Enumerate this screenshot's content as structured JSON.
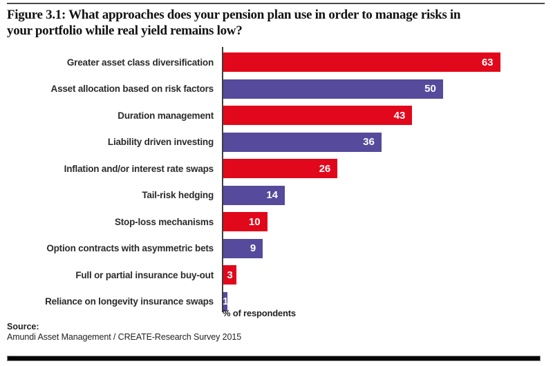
{
  "figure": {
    "title_line1": "Figure 3.1: What approaches does your pension plan use in order to manage risks in",
    "title_line2": "your portfolio while real yield remains low?"
  },
  "source": {
    "label": "Source:",
    "text": "Amundi Asset Management / CREATE-Research Survey 2015"
  },
  "colors": {
    "bar_red": "#e2081b",
    "bar_purple": "#554a9c",
    "axis": "#3d3d3d",
    "value_label": "#ffffff"
  },
  "chart_data": {
    "type": "bar",
    "orientation": "horizontal",
    "title": "Figure 3.1: What approaches does your pension plan use in order to manage risks in your portfolio while real yield remains low?",
    "xlabel": "% of respondents",
    "ylabel": "",
    "xlim": [
      0,
      70
    ],
    "grid": false,
    "legend": "none",
    "value_labels_position": "inside-end",
    "categories": [
      "Greater asset class diversification",
      "Asset allocation based on risk factors",
      "Duration management",
      "Liability driven investing",
      "Inflation and/or interest rate swaps",
      "Tail-risk hedging",
      "Stop-loss mechanisms",
      "Option contracts with asymmetric bets",
      "Full or partial insurance buy-out",
      "Reliance on longevity insurance swaps"
    ],
    "values": [
      63,
      50,
      43,
      36,
      26,
      14,
      10,
      9,
      3,
      1
    ],
    "bar_colors": [
      "#e2081b",
      "#554a9c",
      "#e2081b",
      "#554a9c",
      "#e2081b",
      "#554a9c",
      "#e2081b",
      "#554a9c",
      "#e2081b",
      "#554a9c"
    ]
  }
}
